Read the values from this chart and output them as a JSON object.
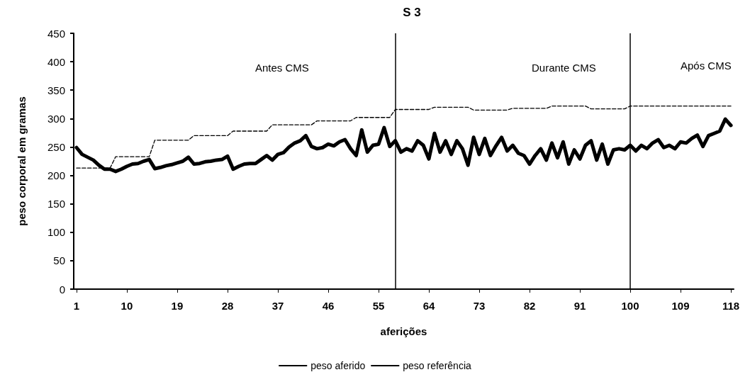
{
  "chart_data": {
    "type": "line",
    "title": "S 3",
    "xlabel": "aferições",
    "ylabel": "peso corporal em gramas",
    "annotations": [
      "Antes CMS",
      "Durante CMS",
      "Após CMS"
    ],
    "x": [
      1,
      2,
      3,
      4,
      5,
      6,
      7,
      8,
      9,
      10,
      11,
      12,
      13,
      14,
      15,
      16,
      17,
      18,
      19,
      20,
      21,
      22,
      23,
      24,
      25,
      26,
      27,
      28,
      29,
      30,
      31,
      32,
      33,
      34,
      35,
      36,
      37,
      38,
      39,
      40,
      41,
      42,
      43,
      44,
      45,
      46,
      47,
      48,
      49,
      50,
      51,
      52,
      53,
      54,
      55,
      56,
      57,
      58,
      59,
      60,
      61,
      62,
      63,
      64,
      65,
      66,
      67,
      68,
      69,
      70,
      71,
      72,
      73,
      74,
      75,
      76,
      77,
      78,
      79,
      80,
      81,
      82,
      83,
      84,
      85,
      86,
      87,
      88,
      89,
      90,
      91,
      92,
      93,
      94,
      95,
      96,
      97,
      98,
      99,
      100,
      101,
      102,
      103,
      104,
      105,
      106,
      107,
      108,
      109,
      110,
      111,
      112,
      113,
      114,
      115,
      116,
      117,
      118
    ],
    "series": [
      {
        "name": "peso aferido",
        "color": "#000000",
        "line_style": "solid",
        "values": [
          249,
          237,
          232,
          227,
          218,
          211,
          211,
          207,
          211,
          216,
          220,
          221,
          225,
          228,
          212,
          214,
          217,
          219,
          222,
          225,
          232,
          220,
          221,
          224,
          225,
          227,
          228,
          234,
          211,
          216,
          220,
          221,
          221,
          228,
          235,
          227,
          237,
          240,
          250,
          257,
          261,
          270,
          251,
          247,
          249,
          255,
          252,
          259,
          263,
          247,
          235,
          280,
          241,
          253,
          255,
          284,
          251,
          261,
          241,
          247,
          243,
          261,
          253,
          229,
          274,
          241,
          261,
          237,
          261,
          247,
          218,
          267,
          237,
          265,
          235,
          252,
          267,
          243,
          253,
          239,
          235,
          220,
          235,
          247,
          227,
          257,
          231,
          259,
          220,
          245,
          229,
          253,
          261,
          227,
          255,
          220,
          245,
          247,
          245,
          253,
          243,
          253,
          247,
          257,
          263,
          249,
          253,
          247,
          259,
          257,
          265,
          271,
          251,
          270,
          274,
          278,
          299,
          288
        ]
      },
      {
        "name": "peso referência",
        "color": "#000000",
        "line_style": "dashed",
        "values": [
          213,
          213,
          213,
          213,
          213,
          213,
          213,
          233,
          233,
          233,
          233,
          233,
          233,
          233,
          262,
          262,
          262,
          262,
          262,
          262,
          262,
          270,
          270,
          270,
          270,
          270,
          270,
          270,
          278,
          278,
          278,
          278,
          278,
          278,
          278,
          289,
          289,
          289,
          289,
          289,
          289,
          289,
          289,
          296,
          296,
          296,
          296,
          296,
          296,
          296,
          302,
          302,
          302,
          302,
          302,
          302,
          302,
          316,
          316,
          316,
          316,
          316,
          316,
          316,
          320,
          320,
          320,
          320,
          320,
          320,
          320,
          315,
          315,
          315,
          315,
          315,
          315,
          315,
          318,
          318,
          318,
          318,
          318,
          318,
          318,
          322,
          322,
          322,
          322,
          322,
          322,
          322,
          317,
          317,
          317,
          317,
          317,
          317,
          317,
          322,
          322,
          322,
          322,
          322,
          322,
          322,
          322,
          322,
          322,
          322,
          322,
          322,
          322,
          322,
          322,
          322,
          322,
          322
        ]
      }
    ],
    "xlim": [
      0.5,
      118.5
    ],
    "xticks": [
      1,
      10,
      19,
      28,
      37,
      46,
      55,
      64,
      73,
      82,
      91,
      100,
      109,
      118
    ],
    "ylim": [
      0,
      450
    ],
    "yticks": [
      0,
      50,
      100,
      150,
      200,
      250,
      300,
      350,
      400,
      450
    ],
    "ref_lines": [
      {
        "axis": "x",
        "value": 58,
        "color": "#000000"
      },
      {
        "axis": "x",
        "value": 100,
        "color": "#000000"
      }
    ],
    "grid": false,
    "legend": "bottom",
    "marker": "none"
  }
}
